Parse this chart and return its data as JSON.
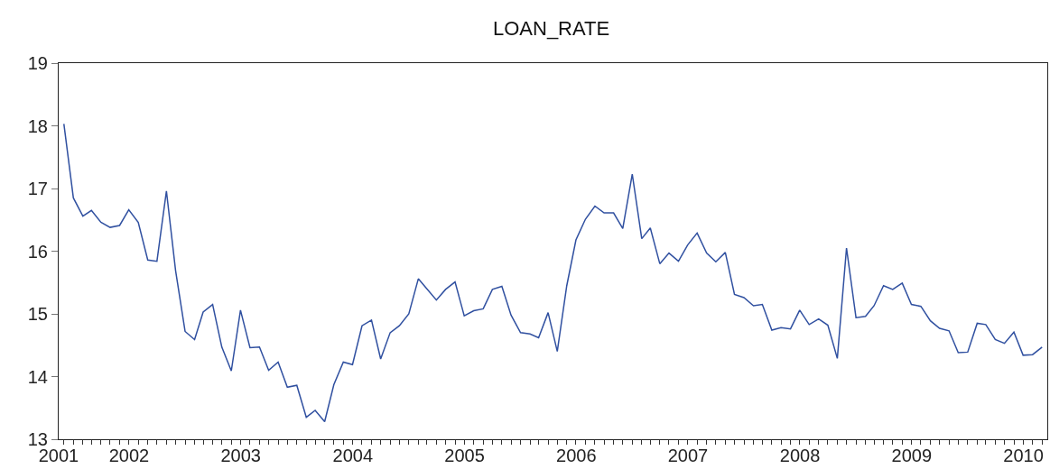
{
  "chart_data": {
    "type": "line",
    "title": "LOAN_RATE",
    "x": [
      "2001-12",
      "2002-01",
      "2002-02",
      "2002-03",
      "2002-04",
      "2002-05",
      "2002-06",
      "2002-07",
      "2002-08",
      "2002-09",
      "2002-10",
      "2002-11",
      "2002-12",
      "2003-01",
      "2003-02",
      "2003-03",
      "2003-04",
      "2003-05",
      "2003-06",
      "2003-07",
      "2003-08",
      "2003-09",
      "2003-10",
      "2003-11",
      "2003-12",
      "2004-01",
      "2004-02",
      "2004-03",
      "2004-04",
      "2004-05",
      "2004-06",
      "2004-07",
      "2004-08",
      "2004-09",
      "2004-10",
      "2004-11",
      "2004-12",
      "2005-01",
      "2005-02",
      "2005-03",
      "2005-04",
      "2005-05",
      "2005-06",
      "2005-07",
      "2005-08",
      "2005-09",
      "2005-10",
      "2005-11",
      "2005-12",
      "2006-01",
      "2006-02",
      "2006-03",
      "2006-04",
      "2006-05",
      "2006-06",
      "2006-07",
      "2006-08",
      "2006-09",
      "2006-10",
      "2006-11",
      "2006-12",
      "2007-01",
      "2007-02",
      "2007-03",
      "2007-04",
      "2007-05",
      "2007-06",
      "2007-07",
      "2007-08",
      "2007-09",
      "2007-10",
      "2007-11",
      "2007-12",
      "2008-01",
      "2008-02",
      "2008-03",
      "2008-04",
      "2008-05",
      "2008-06",
      "2008-07",
      "2008-08",
      "2008-09",
      "2008-10",
      "2008-11",
      "2008-12",
      "2009-01",
      "2009-02",
      "2009-03",
      "2009-04",
      "2009-05",
      "2009-06",
      "2009-07",
      "2009-08",
      "2009-09",
      "2009-10",
      "2009-11",
      "2009-12",
      "2010-01",
      "2010-02",
      "2010-03",
      "2010-04",
      "2010-05",
      "2010-06",
      "2010-07",
      "2010-08",
      "2010-09"
    ],
    "series": [
      {
        "color": "#3050a0",
        "values": [
          18.03,
          16.85,
          16.56,
          16.65,
          16.46,
          16.38,
          16.41,
          16.66,
          16.46,
          15.86,
          15.84,
          16.96,
          15.69,
          14.72,
          14.59,
          15.03,
          15.15,
          14.47,
          14.09,
          15.06,
          14.46,
          14.47,
          14.1,
          14.23,
          13.83,
          13.86,
          13.35,
          13.46,
          13.28,
          13.87,
          14.23,
          14.19,
          14.81,
          14.9,
          14.28,
          14.7,
          14.81,
          15.0,
          15.56,
          15.4,
          15.22,
          15.39,
          15.51,
          14.97,
          15.05,
          15.08,
          15.39,
          15.44,
          14.98,
          14.7,
          14.68,
          14.62,
          15.02,
          14.4,
          15.45,
          16.18,
          16.51,
          16.72,
          16.61,
          16.61,
          16.36,
          17.23,
          16.2,
          16.37,
          15.8,
          15.97,
          15.84,
          16.1,
          16.29,
          15.97,
          15.83,
          15.98,
          15.31,
          15.26,
          15.13,
          15.15,
          14.74,
          14.78,
          14.76,
          15.06,
          14.83,
          14.92,
          14.82,
          14.29,
          16.05,
          14.94,
          14.96,
          15.13,
          15.45,
          15.39,
          15.49,
          15.15,
          15.12,
          14.89,
          14.77,
          14.73,
          14.38,
          14.39,
          14.85,
          14.83,
          14.59,
          14.53,
          14.71,
          14.34,
          14.35,
          14.47
        ]
      }
    ],
    "xlim": [
      "2001-11-14",
      "2010-09-18"
    ],
    "xticks": [
      {
        "value": "2001-11-14",
        "label": "2001"
      },
      {
        "value": "2002-07-02",
        "label": "2002"
      },
      {
        "value": "2003-07-02",
        "label": "2003"
      },
      {
        "value": "2004-07-02",
        "label": "2004"
      },
      {
        "value": "2005-07-02",
        "label": "2005"
      },
      {
        "value": "2006-07-02",
        "label": "2006"
      },
      {
        "value": "2007-07-02",
        "label": "2007"
      },
      {
        "value": "2008-07-02",
        "label": "2008"
      },
      {
        "value": "2009-07-02",
        "label": "2009"
      },
      {
        "value": "2010-07-02",
        "label": "2010"
      }
    ],
    "ylim": [
      13,
      19
    ],
    "yticks": [
      13,
      14,
      15,
      16,
      17,
      18,
      19
    ],
    "grid": false,
    "marker": "none",
    "line_style": "solid"
  }
}
